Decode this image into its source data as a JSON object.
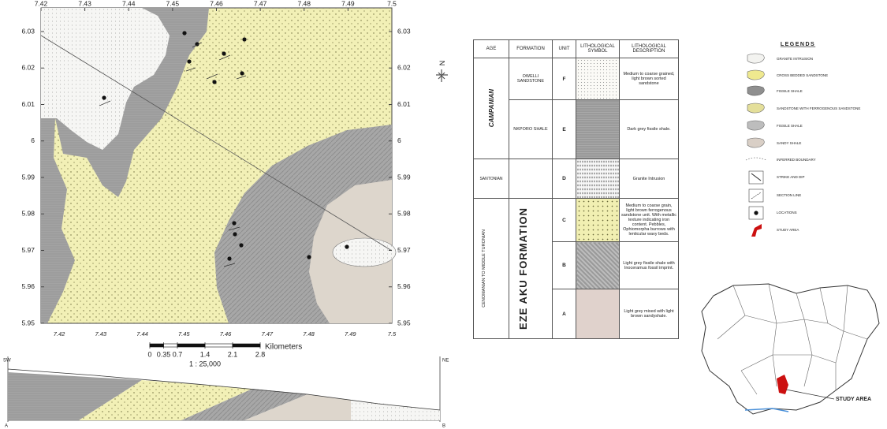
{
  "map": {
    "lon_ticks": [
      7.42,
      7.43,
      7.44,
      7.45,
      7.46,
      7.47,
      7.48,
      7.49,
      7.5
    ],
    "lat_ticks": [
      6.03,
      6.02,
      6.01,
      6,
      5.99,
      5.98,
      5.97,
      5.96,
      5.95
    ],
    "north": "N",
    "scale": {
      "ticks": [
        0,
        0.35,
        0.7,
        1.4,
        2.1,
        2.8
      ],
      "unit": "Kilometers",
      "ratio": "1 : 25,000"
    },
    "section": {
      "left_end": "SW",
      "right_end": "NE",
      "start": "A",
      "end": "B"
    }
  },
  "table": {
    "headers": [
      "AGE",
      "FORMATION",
      "UNIT",
      "LITHOLOGICAL SYMBOL",
      "LITHOLOGICAL DESCRIPTION"
    ],
    "ages": [
      "CAMPANIAN",
      "SANTONIAN",
      "CENOMANIAN TO MIDDLE TURONIAN"
    ],
    "formations": [
      "OWELLI SANDSTONE",
      "NKPORO SHALE",
      "EZE AKU FORMATION"
    ],
    "rows": [
      {
        "unit": "F",
        "description": "Medium to coarse grained, light brown sorted sandstone"
      },
      {
        "unit": "E",
        "description": "Dark grey fissile shale."
      },
      {
        "unit": "D",
        "description": "Granite Intrusion"
      },
      {
        "unit": "C",
        "description": "Medium to coarse grain, light brown ferrogenous sandstone unit. With metallic texture indicating iron content. Pebbles, Ophiomorpha burrows with lenticular wavy beds."
      },
      {
        "unit": "B",
        "description": "Light grey fissile shale with Inoceramus fossil imprint."
      },
      {
        "unit": "A",
        "description": "Light grey mixed with light brown sandyshale."
      }
    ]
  },
  "legend": {
    "title": "LEGENDS",
    "items": [
      "GRANITE INTRUSION",
      "CROSS BEDDED SANDSTONE",
      "FISSILE SHALE",
      "SANDSTONE WITH FERROGENOUS SANDSTONE",
      "FISSILE SHALE",
      "SANDY SHALE",
      "INFERRED BOUNDARY",
      "STRIKE AND DIP",
      "SECTION LINE",
      "LOCATIONS",
      "STUDY AREA"
    ]
  },
  "inset": {
    "label": "STUDY AREA"
  }
}
